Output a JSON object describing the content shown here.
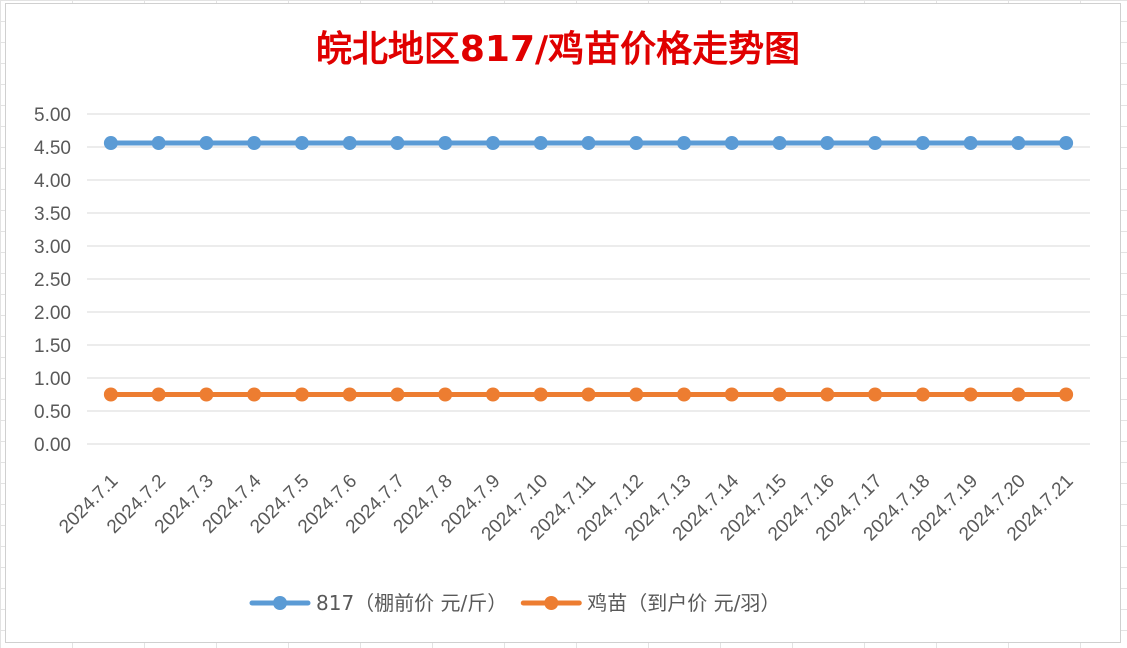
{
  "chart_data": {
    "type": "line",
    "title": "皖北地区817/鸡苗价格走势图",
    "categories": [
      "2024.7.1",
      "2024.7.2",
      "2024.7.3",
      "2024.7.4",
      "2024.7.5",
      "2024.7.6",
      "2024.7.7",
      "2024.7.8",
      "2024.7.9",
      "2024.7.10",
      "2024.7.11",
      "2024.7.12",
      "2024.7.13",
      "2024.7.14",
      "2024.7.15",
      "2024.7.16",
      "2024.7.17",
      "2024.7.18",
      "2024.7.19",
      "2024.7.20",
      "2024.7.21"
    ],
    "series": [
      {
        "name": "817（棚前价 元/斤）",
        "color": "#5B9BD5",
        "values": [
          4.56,
          4.56,
          4.56,
          4.56,
          4.56,
          4.56,
          4.56,
          4.56,
          4.56,
          4.56,
          4.56,
          4.56,
          4.56,
          4.56,
          4.56,
          4.56,
          4.56,
          4.56,
          4.56,
          4.56,
          4.56
        ]
      },
      {
        "name": "鸡苗（到户价 元/羽）",
        "color": "#ED7D31",
        "values": [
          0.75,
          0.75,
          0.75,
          0.75,
          0.75,
          0.75,
          0.75,
          0.75,
          0.75,
          0.75,
          0.75,
          0.75,
          0.75,
          0.75,
          0.75,
          0.75,
          0.75,
          0.75,
          0.75,
          0.75,
          0.75
        ]
      }
    ],
    "ylim": [
      0,
      5
    ],
    "yticks": [
      "0.00",
      "0.50",
      "1.00",
      "1.50",
      "2.00",
      "2.50",
      "3.00",
      "3.50",
      "4.00",
      "4.50",
      "5.00"
    ],
    "xlabel": "",
    "ylabel": "",
    "grid": true,
    "legend_position": "bottom",
    "title_color": "#E00000",
    "grid_color": "#D9D9D9",
    "axis_text_color": "#595959"
  }
}
